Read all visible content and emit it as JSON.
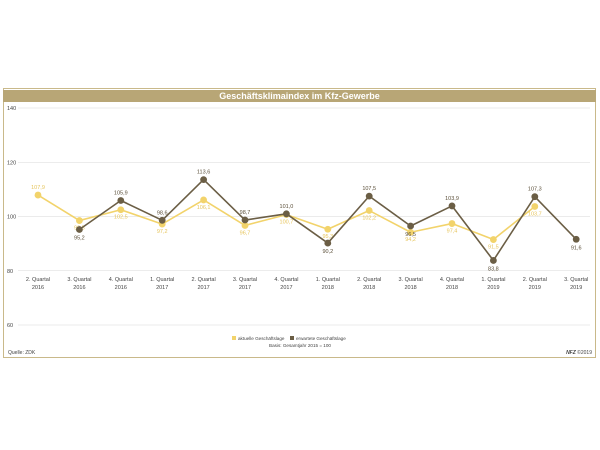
{
  "chart_data": {
    "type": "line",
    "title": "Geschäftsklimaindex im Kfz-Gewerbe",
    "ylim": [
      60,
      140
    ],
    "yticks": [
      "140",
      "120",
      "100",
      "80",
      "60"
    ],
    "categories": [
      [
        "2. Quartal",
        "2016"
      ],
      [
        "3. Quartal",
        "2016"
      ],
      [
        "4. Quartal",
        "2016"
      ],
      [
        "1. Quartal",
        "2017"
      ],
      [
        "2. Quartal",
        "2017"
      ],
      [
        "3. Quartal",
        "2017"
      ],
      [
        "4. Quartal",
        "2017"
      ],
      [
        "1. Quartal",
        "2018"
      ],
      [
        "2. Quartal",
        "2018"
      ],
      [
        "3. Quartal",
        "2018"
      ],
      [
        "4. Quartal",
        "2018"
      ],
      [
        "1. Quartal",
        "2019"
      ],
      [
        "2. Quartal",
        "2019"
      ],
      [
        "3. Quartal",
        "2019"
      ]
    ],
    "series": [
      {
        "name": "aktuelle Geschäftslage",
        "color": "#f2d36b",
        "values": [
          107.9,
          98.5,
          102.5,
          97.2,
          106.1,
          96.7,
          100.7,
          95.3,
          102.2,
          94.2,
          97.4,
          91.5,
          103.7,
          null
        ],
        "labels": [
          "107,9",
          "98,5",
          "102,5",
          "97,2",
          "106,1",
          "96,7",
          "100,7",
          "95,3",
          "102,2",
          "94,2",
          "97,4",
          "91,5",
          "103,7",
          ""
        ]
      },
      {
        "name": "erwartete Geschäftslage",
        "color": "#6b5e45",
        "values": [
          null,
          95.2,
          105.9,
          98.6,
          113.6,
          98.7,
          101.0,
          90.2,
          107.5,
          96.5,
          103.9,
          83.8,
          107.3,
          91.6
        ],
        "labels": [
          "",
          "95,2",
          "105,9",
          "98,6",
          "113,6",
          "98,7",
          "101,0",
          "90,2",
          "107,5",
          "96,5",
          "103,9",
          "83,8",
          "107,3",
          "91,6"
        ]
      }
    ],
    "legend_position": "bottom-center",
    "note": "Basis: Gesamtjahr 2015 = 100"
  },
  "footer": {
    "source": "Quelle: ZDK",
    "brand": "NFZ",
    "copyright": " ©2019"
  }
}
